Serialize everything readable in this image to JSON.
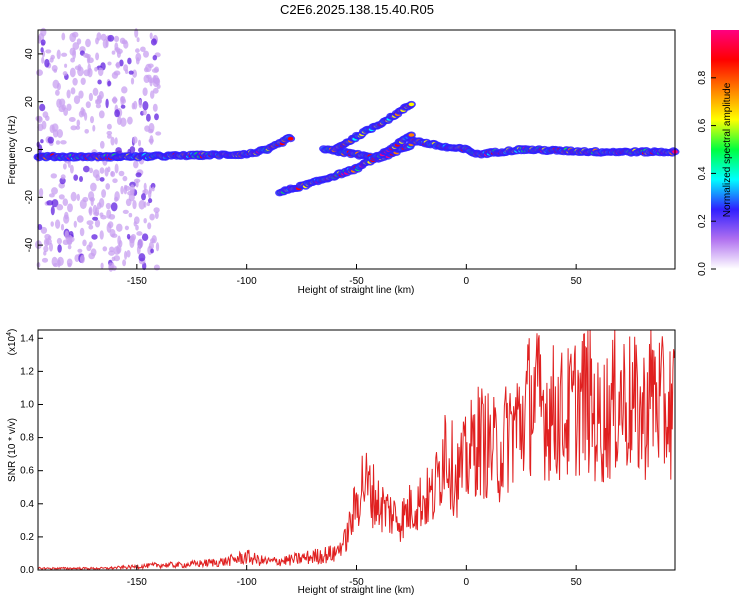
{
  "title": "C2E6.2025.138.15.40.R05",
  "spectrogram": {
    "xlabel": "Height of straight line (km)",
    "ylabel": "Frequency (Hz)",
    "xlim": [
      -195,
      95
    ],
    "ylim": [
      -50,
      50
    ],
    "xticks": [
      -150,
      -100,
      -50,
      0,
      50
    ],
    "yticks": [
      -40,
      -20,
      0,
      20,
      40
    ],
    "colorbar": {
      "label": "Normalized spectral amplitude",
      "ticks": [
        0.0,
        0.2,
        0.4,
        0.6,
        0.8
      ],
      "colors": [
        "#ffffff",
        "#b070f0",
        "#3020ff",
        "#00ffff",
        "#00ff40",
        "#ffff00",
        "#ff8000",
        "#ff0000",
        "#ff0080"
      ]
    }
  },
  "chart_data": [
    {
      "type": "heatmap",
      "title": "C2E6.2025.138.15.40.R05",
      "xlabel": "Height of straight line (km)",
      "ylabel": "Frequency (Hz)",
      "xlim": [
        -195,
        95
      ],
      "ylim": [
        -50,
        50
      ],
      "colorbar_label": "Normalized spectral amplitude",
      "ridges": [
        {
          "x": [
            -195,
            -150,
            -100,
            -90,
            -80
          ],
          "y": [
            -3,
            -3,
            -2,
            0,
            5
          ]
        },
        {
          "x": [
            -65,
            -50,
            -40,
            -25
          ],
          "y": [
            0,
            -2,
            -4,
            2
          ]
        },
        {
          "x": [
            -85,
            -70,
            -50,
            -35,
            -25
          ],
          "y": [
            -18,
            -14,
            -8,
            0,
            6
          ]
        },
        {
          "x": [
            -60,
            -45,
            -35,
            -25
          ],
          "y": [
            0,
            8,
            13,
            19
          ]
        },
        {
          "x": [
            -25,
            -10,
            0,
            5,
            25,
            60,
            95
          ],
          "y": [
            4,
            1,
            0,
            -2,
            0,
            -1,
            -1
          ]
        }
      ]
    },
    {
      "type": "line",
      "xlabel": "Height of straight line (km)",
      "ylabel": "SNR (10 * v/v)",
      "ylabel_scale": "(x10",
      "ylabel_scale_exp": "4",
      "ylabel_scale_close": ")",
      "xlim": [
        -195,
        95
      ],
      "ylim": [
        0,
        1.45
      ],
      "xticks": [
        -150,
        -100,
        -50,
        0,
        50
      ],
      "yticks": [
        0.0,
        0.2,
        0.4,
        0.6,
        0.8,
        1.0,
        1.2,
        1.4
      ],
      "color": "#e02020",
      "series": [
        {
          "x": [
            -195,
            -180,
            -165,
            -150,
            -140,
            -130,
            -120,
            -110,
            -100,
            -95,
            -90,
            -80,
            -70,
            -60,
            -55,
            -50,
            -47,
            -45,
            -42,
            -40,
            -35,
            -30,
            -25,
            -20,
            -15,
            -12,
            -10,
            -5,
            0,
            5,
            10,
            15,
            20,
            25,
            30,
            35,
            40,
            45,
            50,
            55,
            60,
            65,
            70,
            75,
            80,
            85,
            90,
            95
          ],
          "y": [
            0.01,
            0.01,
            0.01,
            0.02,
            0.03,
            0.03,
            0.04,
            0.05,
            0.08,
            0.06,
            0.05,
            0.06,
            0.08,
            0.1,
            0.18,
            0.4,
            0.55,
            0.5,
            0.45,
            0.4,
            0.35,
            0.3,
            0.38,
            0.42,
            0.45,
            0.6,
            0.8,
            0.55,
            0.65,
            0.8,
            0.75,
            0.7,
            0.85,
            0.9,
            1.05,
            0.98,
            0.95,
            0.92,
            1.0,
            1.05,
            0.88,
            0.95,
            1.05,
            1.0,
            0.92,
            1.1,
            0.95,
            1.0
          ]
        }
      ]
    }
  ]
}
